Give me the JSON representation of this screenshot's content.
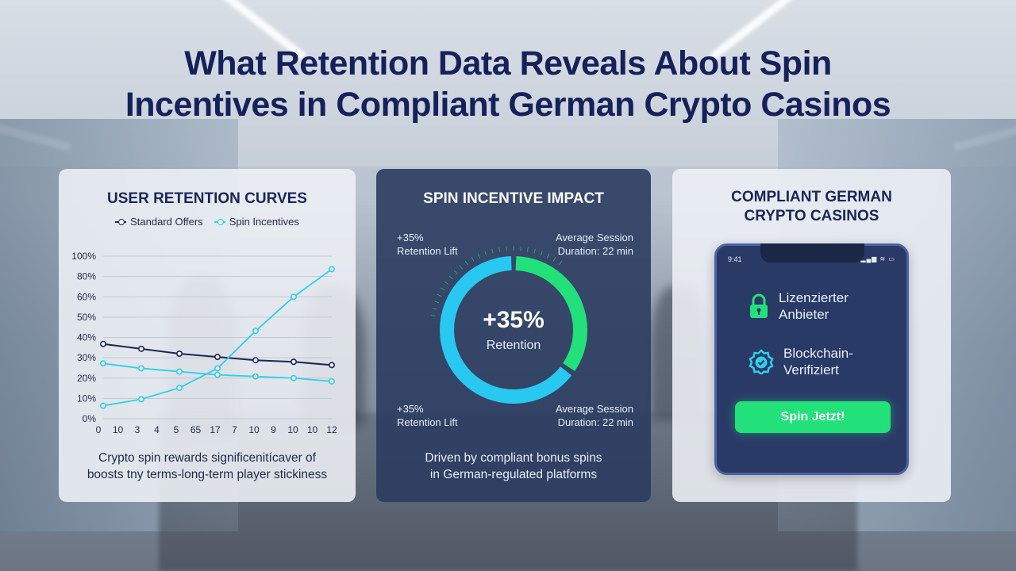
{
  "title_line1": "What Retention Data Reveals About Spin",
  "title_line2": "Incentives in Compliant German Crypto Casinos",
  "colors": {
    "navy": "#16205a",
    "standard_series": "#1b2557",
    "spin_series": "#2ed0ea",
    "donut_cyan": "#28c8f0",
    "donut_green": "#22e07a",
    "cta_green": "#22e07a"
  },
  "left_panel": {
    "heading": "USER RETENTION CURVES",
    "caption_line1": "Crypto spin rewards significenitícaver of",
    "caption_line2": "boosts tny terms-long-term player stickiness"
  },
  "chart_data": {
    "type": "line",
    "title": "USER RETENTION CURVES",
    "x_tick_labels": [
      "0",
      "10",
      "3",
      "4",
      "5",
      "65",
      "17",
      "7",
      "10",
      "9",
      "10",
      "10",
      "12"
    ],
    "y_tick_labels": [
      "0%",
      "10%",
      "20%",
      "30%",
      "40%",
      "50%",
      "60%",
      "80%",
      "100%"
    ],
    "ylim": [
      0,
      100
    ],
    "x": [
      0,
      2,
      4,
      6,
      8,
      10,
      12
    ],
    "series": [
      {
        "name": "Standard Offers",
        "color": "#1b2557",
        "values": [
          46,
          43,
          40,
          38,
          36,
          35,
          33
        ]
      },
      {
        "name": "Spin Incentives",
        "color": "#2ed0ea",
        "values": [
          34,
          31,
          29,
          27,
          26,
          25,
          23
        ]
      },
      {
        "name": "Spin Incentives",
        "color": "#2ed0ea",
        "values": [
          8,
          12,
          19,
          31,
          54,
          75,
          92
        ]
      }
    ],
    "legend_position": "top-center",
    "grid": true
  },
  "mid_panel": {
    "heading": "SPIN INCENTIVE IMPACT",
    "stat_tl_line1": "+35%",
    "stat_tl_line2": "Retention Lift",
    "stat_tr_line1": "Average Session",
    "stat_tr_line2": "Duration: 22 min",
    "stat_bl_line1": "+35%",
    "stat_bl_line2": "Retention Lift",
    "stat_br_line1": "Average Session",
    "stat_br_line2": "Duration: 22 min",
    "donut_value": "+35%",
    "donut_label": "Retention",
    "donut_green_fraction": 0.35,
    "caption_line1": "Driven by compliant bonus spins",
    "caption_line2": "in German-regulated platforms"
  },
  "right_panel": {
    "heading_line1": "COMPLIANT GERMAN",
    "heading_line2": "CRYPTO CASINOS",
    "phone_time": "9:41",
    "phone_status": "▂▄▆ ≋ ▭",
    "feature1_line1": "Lizenzierter",
    "feature1_line2": "Anbieter",
    "feature1_icon": "lock-icon",
    "feature2_line1": "Blockchain-",
    "feature2_line2": "Verifiziert",
    "feature2_icon": "verified-badge-icon",
    "cta_label": "Spin Jetzt!"
  }
}
